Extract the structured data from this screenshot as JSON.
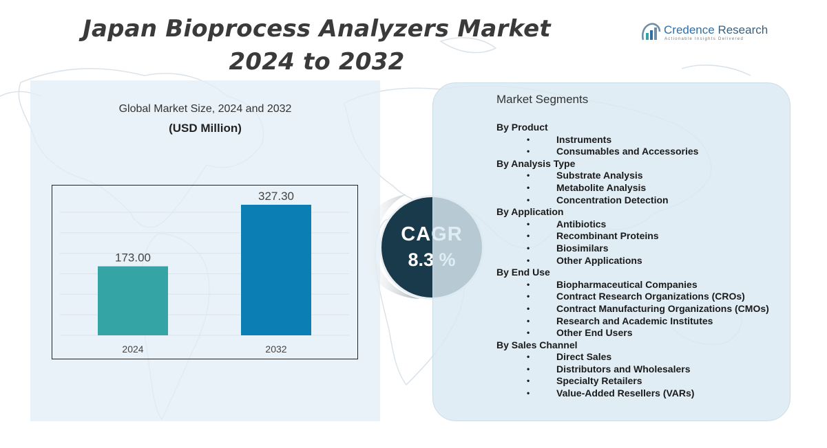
{
  "header": {
    "title_line1": "Japan Bioprocess Analyzers Market",
    "title_line2": "2024 to 2032"
  },
  "logo": {
    "name_part1": "Credence",
    "name_part2": " Research",
    "tagline": "Actionable Insights Delivered",
    "icon": "bar-chart-logo-icon"
  },
  "chart_caption": "Global Market Size, 2024 and 2032",
  "chart_unit": "(USD Million)",
  "chart_data": {
    "type": "bar",
    "categories": [
      "2024",
      "2032"
    ],
    "values": [
      173.0,
      327.3
    ],
    "value_labels": [
      "173.00",
      "327.30"
    ],
    "ylim": [
      0,
      360
    ],
    "grid": true,
    "colors": [
      "#35a4a5",
      "#0b7fb3"
    ]
  },
  "cagr": {
    "label": "CAGR",
    "value": "8.3 %"
  },
  "segments": {
    "title": "Market Segments",
    "groups": [
      {
        "title": "By Product",
        "items": [
          "Instruments",
          "Consumables and Accessories"
        ]
      },
      {
        "title": "By Analysis Type",
        "items": [
          "Substrate Analysis",
          "Metabolite Analysis",
          "Concentration Detection"
        ]
      },
      {
        "title": "By Application",
        "items": [
          "Antibiotics",
          "Recombinant Proteins",
          "Biosimilars",
          "Other Applications"
        ]
      },
      {
        "title": "By End Use",
        "items": [
          "Biopharmaceutical Companies",
          "Contract Research Organizations (CROs)",
          "Contract Manufacturing Organizations (CMOs)",
          "Research and Academic Institutes",
          "Other End Users"
        ]
      },
      {
        "title": "By Sales Channel",
        "items": [
          "Direct Sales",
          "Distributors and Wholesalers",
          "Specialty Retailers",
          "Value-Added Resellers (VARs)"
        ]
      }
    ]
  },
  "bullet": "•"
}
